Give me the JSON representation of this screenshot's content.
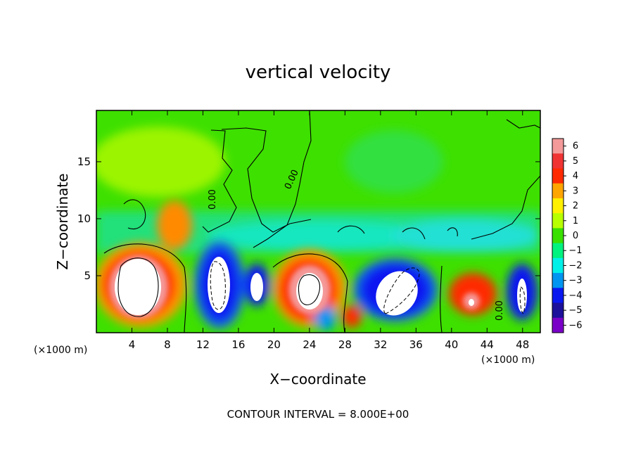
{
  "chart_data": {
    "type": "heatmap",
    "title": "vertical velocity",
    "xlabel": "X−coordinate",
    "ylabel": "Z−coordinate",
    "x_unit": "(×1000 m)",
    "y_unit": "(×1000 m)",
    "xlim": [
      0,
      50
    ],
    "ylim": [
      0,
      19.5
    ],
    "x_ticks": [
      4,
      8,
      12,
      16,
      20,
      24,
      28,
      32,
      36,
      40,
      44,
      48
    ],
    "y_ticks": [
      5,
      10,
      15
    ],
    "colorbar": {
      "range": [
        -6,
        6
      ],
      "tick_labels": [
        "6",
        "5",
        "4",
        "3",
        "2",
        "1",
        "0",
        "−1",
        "−2",
        "−3",
        "−4",
        "−5",
        "−6"
      ],
      "colors": [
        "#f49a9a",
        "#f03434",
        "#ff2a00",
        "#ffa500",
        "#fff000",
        "#b8ff00",
        "#39e000",
        "#00f27f",
        "#00f0e8",
        "#0095f0",
        "#0a18f0",
        "#1d109a",
        "#7a00c8"
      ]
    },
    "contour_labels": [
      "0.00",
      "0.00",
      "0.00"
    ],
    "annotation": "CONTOUR INTERVAL = 8.000E+00"
  }
}
